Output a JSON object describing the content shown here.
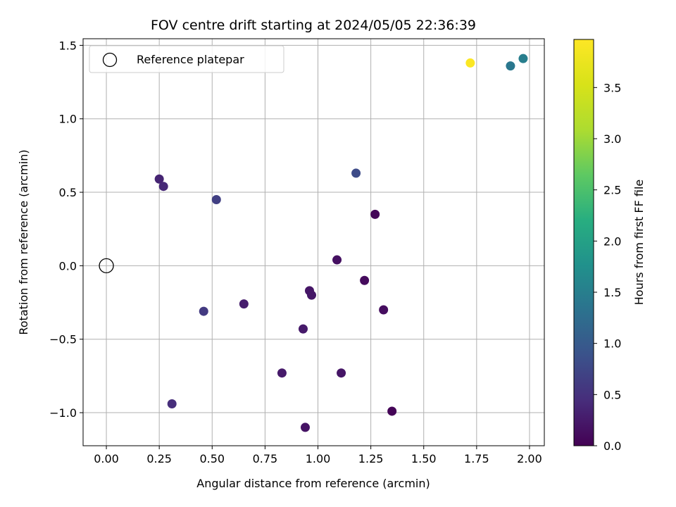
{
  "chart_data": {
    "type": "scatter",
    "title": "FOV centre drift starting at 2024/05/05 22:36:39",
    "xlabel": "Angular distance from reference (arcmin)",
    "ylabel": "Rotation from reference (arcmin)",
    "xlim": [
      -0.11,
      2.07
    ],
    "ylim": [
      -1.225,
      1.545
    ],
    "xticks": [
      0.0,
      0.25,
      0.5,
      0.75,
      1.0,
      1.25,
      1.5,
      1.75,
      2.0
    ],
    "xtick_labels": [
      "0.00",
      "0.25",
      "0.50",
      "0.75",
      "1.00",
      "1.25",
      "1.50",
      "1.75",
      "2.00"
    ],
    "yticks": [
      -1.0,
      -0.5,
      0.0,
      0.5,
      1.0,
      1.5
    ],
    "ytick_labels": [
      "−1.0",
      "−0.5",
      "0.0",
      "0.5",
      "1.0",
      "1.5"
    ],
    "grid": true,
    "legend": {
      "placement": "top-left",
      "entries": [
        {
          "label": "Reference platepar",
          "marker": "open-circle",
          "color": "#000000"
        }
      ]
    },
    "reference_point": {
      "x": 0.0,
      "y": 0.0
    },
    "colorbar": {
      "label": "Hours from first FF file",
      "colormap": "viridis",
      "range": [
        0.0,
        3.97
      ],
      "ticks": [
        0.0,
        0.5,
        1.0,
        1.5,
        2.0,
        2.5,
        3.0,
        3.5
      ],
      "tick_labels": [
        "0.0",
        "0.5",
        "1.0",
        "1.5",
        "2.0",
        "2.5",
        "3.0",
        "3.5"
      ]
    },
    "points": [
      {
        "x": 1.72,
        "y": 1.38,
        "hours": 3.95
      },
      {
        "x": 1.91,
        "y": 1.36,
        "hours": 1.4
      },
      {
        "x": 1.97,
        "y": 1.41,
        "hours": 1.5
      },
      {
        "x": 1.18,
        "y": 0.63,
        "hours": 0.8
      },
      {
        "x": 0.25,
        "y": 0.59,
        "hours": 0.35
      },
      {
        "x": 0.27,
        "y": 0.54,
        "hours": 0.4
      },
      {
        "x": 0.52,
        "y": 0.45,
        "hours": 0.65
      },
      {
        "x": 1.27,
        "y": 0.35,
        "hours": 0.05
      },
      {
        "x": 1.09,
        "y": 0.04,
        "hours": 0.15
      },
      {
        "x": 1.22,
        "y": -0.1,
        "hours": 0.1
      },
      {
        "x": 0.96,
        "y": -0.17,
        "hours": 0.2
      },
      {
        "x": 0.97,
        "y": -0.2,
        "hours": 0.22
      },
      {
        "x": 1.31,
        "y": -0.3,
        "hours": 0.12
      },
      {
        "x": 0.65,
        "y": -0.26,
        "hours": 0.28
      },
      {
        "x": 0.46,
        "y": -0.31,
        "hours": 0.6
      },
      {
        "x": 0.93,
        "y": -0.43,
        "hours": 0.25
      },
      {
        "x": 0.83,
        "y": -0.73,
        "hours": 0.25
      },
      {
        "x": 1.11,
        "y": -0.73,
        "hours": 0.2
      },
      {
        "x": 0.31,
        "y": -0.94,
        "hours": 0.45
      },
      {
        "x": 1.35,
        "y": -0.99,
        "hours": 0.03
      },
      {
        "x": 0.94,
        "y": -1.1,
        "hours": 0.18
      }
    ]
  }
}
